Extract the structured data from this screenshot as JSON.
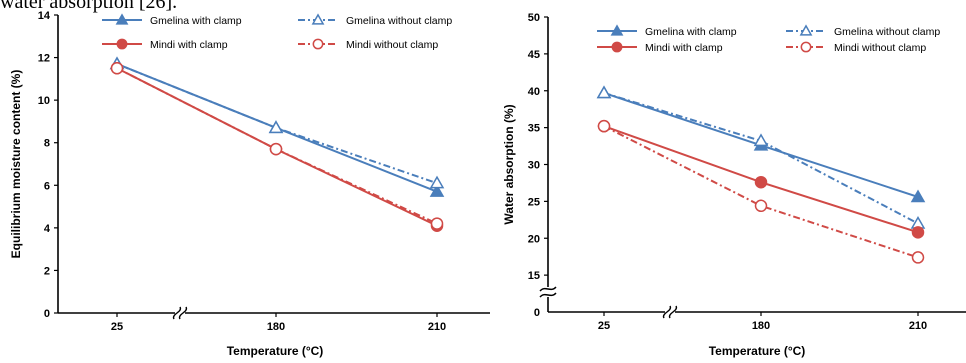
{
  "caption_fragment": "water absorption [26].",
  "colors": {
    "gmelina": "#4a7ebb",
    "mindi": "#d04a46"
  },
  "chart_data": [
    {
      "type": "line",
      "categories": [
        "25",
        "180",
        "210"
      ],
      "xlabel": "Temperature (°C)",
      "ylabel": "Equilibrium moisture content (%)",
      "ylim": [
        0,
        14
      ],
      "yticks": [
        0,
        2,
        4,
        6,
        8,
        10,
        12,
        14
      ],
      "axis_break_x": true,
      "axis_break_y": false,
      "grid": false,
      "legend_position": "top",
      "series": [
        {
          "name": "Gmelina with clamp",
          "values": [
            11.7,
            8.7,
            5.7
          ],
          "color": "#4a7ebb",
          "dash": "solid",
          "marker": "triangle-filled"
        },
        {
          "name": "Gmelina without clamp",
          "values": [
            11.7,
            8.7,
            6.1
          ],
          "color": "#4a7ebb",
          "dash": "dashdot",
          "marker": "triangle-open"
        },
        {
          "name": "Mindi with clamp",
          "values": [
            11.5,
            7.7,
            4.1
          ],
          "color": "#d04a46",
          "dash": "solid",
          "marker": "circle-filled"
        },
        {
          "name": "Mindi without clamp",
          "values": [
            11.5,
            7.7,
            4.2
          ],
          "color": "#d04a46",
          "dash": "dashdot",
          "marker": "circle-open"
        }
      ]
    },
    {
      "type": "line",
      "categories": [
        "25",
        "180",
        "210"
      ],
      "xlabel": "Temperature (°C)",
      "ylabel": "Water absorption (%)",
      "ylim": [
        10,
        50
      ],
      "yticks": [
        15,
        20,
        25,
        30,
        35,
        40,
        45,
        50
      ],
      "ytick_labels": [
        "15",
        "20",
        "25",
        "30",
        "35",
        "40",
        "45",
        "50"
      ],
      "y_origin_label": "0",
      "axis_break_x": true,
      "axis_break_y": true,
      "grid": false,
      "legend_position": "top",
      "series": [
        {
          "name": "Gmelina with clamp",
          "values": [
            39.7,
            32.6,
            25.6
          ],
          "color": "#4a7ebb",
          "dash": "solid",
          "marker": "triangle-filled"
        },
        {
          "name": "Gmelina without clamp",
          "values": [
            39.7,
            33.2,
            22.0
          ],
          "color": "#4a7ebb",
          "dash": "dashdot",
          "marker": "triangle-open"
        },
        {
          "name": "Mindi with clamp",
          "values": [
            35.2,
            27.6,
            20.8
          ],
          "color": "#d04a46",
          "dash": "solid",
          "marker": "circle-filled"
        },
        {
          "name": "Mindi without clamp",
          "values": [
            35.2,
            24.4,
            17.4
          ],
          "color": "#d04a46",
          "dash": "dashdot",
          "marker": "circle-open"
        }
      ]
    }
  ]
}
